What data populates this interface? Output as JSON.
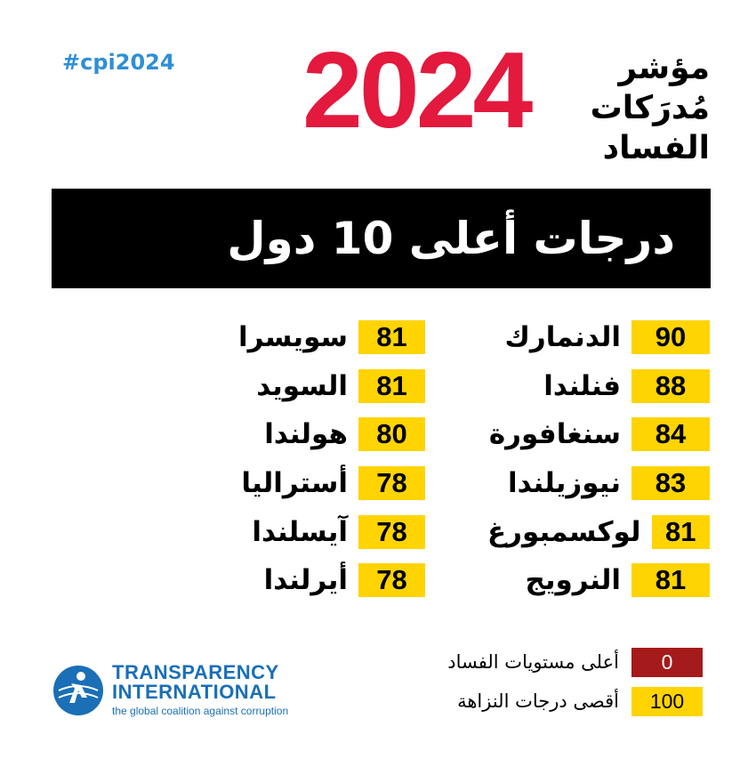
{
  "hashtag": "#cpi2024",
  "year": "2024",
  "index_title_lines": [
    "مؤشر",
    "مُدرَكات",
    "الفساد"
  ],
  "banner_title": "درجات أعلى 10 دول",
  "colors": {
    "year_red": "#e3193e",
    "score_yellow": "#ffd400",
    "legend_low": "#a51a1a",
    "brand_blue": "#1a6fb7",
    "hashtag_blue": "#2e8fd6"
  },
  "countries_right": [
    {
      "name": "الدنمارك",
      "score": "90"
    },
    {
      "name": "فنلندا",
      "score": "88"
    },
    {
      "name": "سنغافورة",
      "score": "84"
    },
    {
      "name": "نيوزيلندا",
      "score": "83"
    },
    {
      "name": "لوكسمبورغ",
      "score": "81"
    },
    {
      "name": "النرويج",
      "score": "81"
    }
  ],
  "countries_left": [
    {
      "name": "سويسرا",
      "score": "81"
    },
    {
      "name": "السويد",
      "score": "81"
    },
    {
      "name": "هولندا",
      "score": "80"
    },
    {
      "name": "أستراليا",
      "score": "78"
    },
    {
      "name": "آيسلندا",
      "score": "78"
    },
    {
      "name": "أيرلندا",
      "score": "78"
    }
  ],
  "legend": [
    {
      "value": "0",
      "label": "أعلى مستويات الفساد"
    },
    {
      "value": "100",
      "label": "أقصى درجات النزاهة"
    }
  ],
  "logo": {
    "icon": "ti-globe-person-icon",
    "line1": "TRANSPARENCY",
    "line2": "INTERNATIONAL",
    "tagline": "the global coalition against corruption"
  }
}
